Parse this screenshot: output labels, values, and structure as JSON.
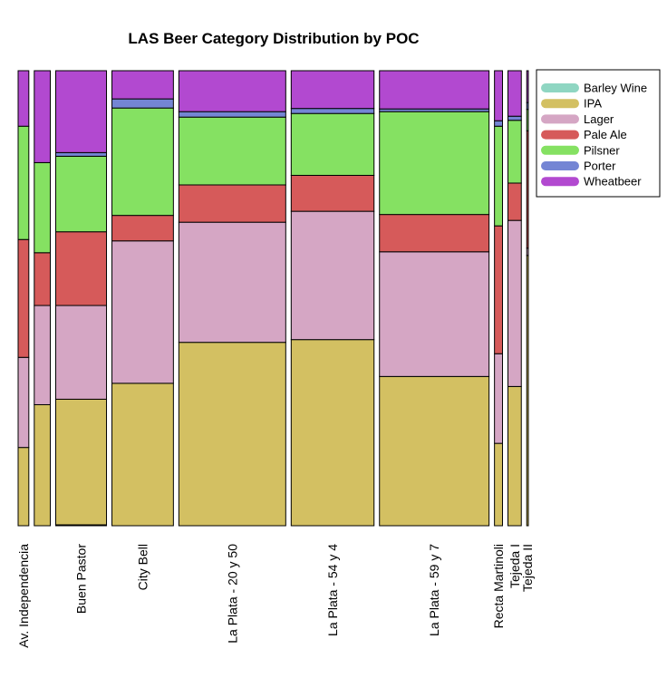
{
  "chart_data": {
    "type": "mosaic",
    "title": "LAS Beer Category Distribution by POC",
    "xlabel": "",
    "ylabel": "",
    "categories": [
      "Av. Independencia",
      "",
      "Buen Pastor",
      "City Bell",
      "La Plata - 20 y 50",
      "La Plata - 54 y 4",
      "La Plata - 59 y 7",
      "Recta Martinoli",
      "Tejeda I",
      "Tejeda II"
    ],
    "category_shares": [
      0.02,
      0.03,
      0.095,
      0.115,
      0.2,
      0.155,
      0.205,
      0.015,
      0.025,
      0.003
    ],
    "series": [
      {
        "name": "Barley Wine",
        "color": "#8fd6c2",
        "values": [
          0,
          0,
          0.002,
          0,
          0,
          0,
          0,
          0,
          0,
          0
        ]
      },
      {
        "name": "IPA",
        "color": "#d3c062",
        "values": [
          0.172,
          0.266,
          0.276,
          0.313,
          0.403,
          0.409,
          0.328,
          0.181,
          0.306,
          0.594
        ]
      },
      {
        "name": "Lager",
        "color": "#d5a6c4",
        "values": [
          0.198,
          0.218,
          0.206,
          0.313,
          0.264,
          0.282,
          0.274,
          0.197,
          0.365,
          0.016
        ]
      },
      {
        "name": "Pale Ale",
        "color": "#d65a5a",
        "values": [
          0.259,
          0.116,
          0.162,
          0.056,
          0.082,
          0.079,
          0.082,
          0.281,
          0.082,
          0.258
        ]
      },
      {
        "name": "Pilsner",
        "color": "#85e162",
        "values": [
          0.249,
          0.198,
          0.166,
          0.236,
          0.149,
          0.136,
          0.226,
          0.219,
          0.138,
          0.047
        ]
      },
      {
        "name": "Porter",
        "color": "#7485d4",
        "values": [
          0,
          0,
          0.008,
          0.02,
          0.012,
          0.011,
          0.006,
          0.012,
          0.009,
          0.015
        ]
      },
      {
        "name": "Wheatbeer",
        "color": "#b249d0",
        "values": [
          0.122,
          0.202,
          0.18,
          0.062,
          0.09,
          0.083,
          0.084,
          0.11,
          0.1,
          0.07
        ]
      }
    ],
    "legend_position": "top-right",
    "grid": false
  }
}
